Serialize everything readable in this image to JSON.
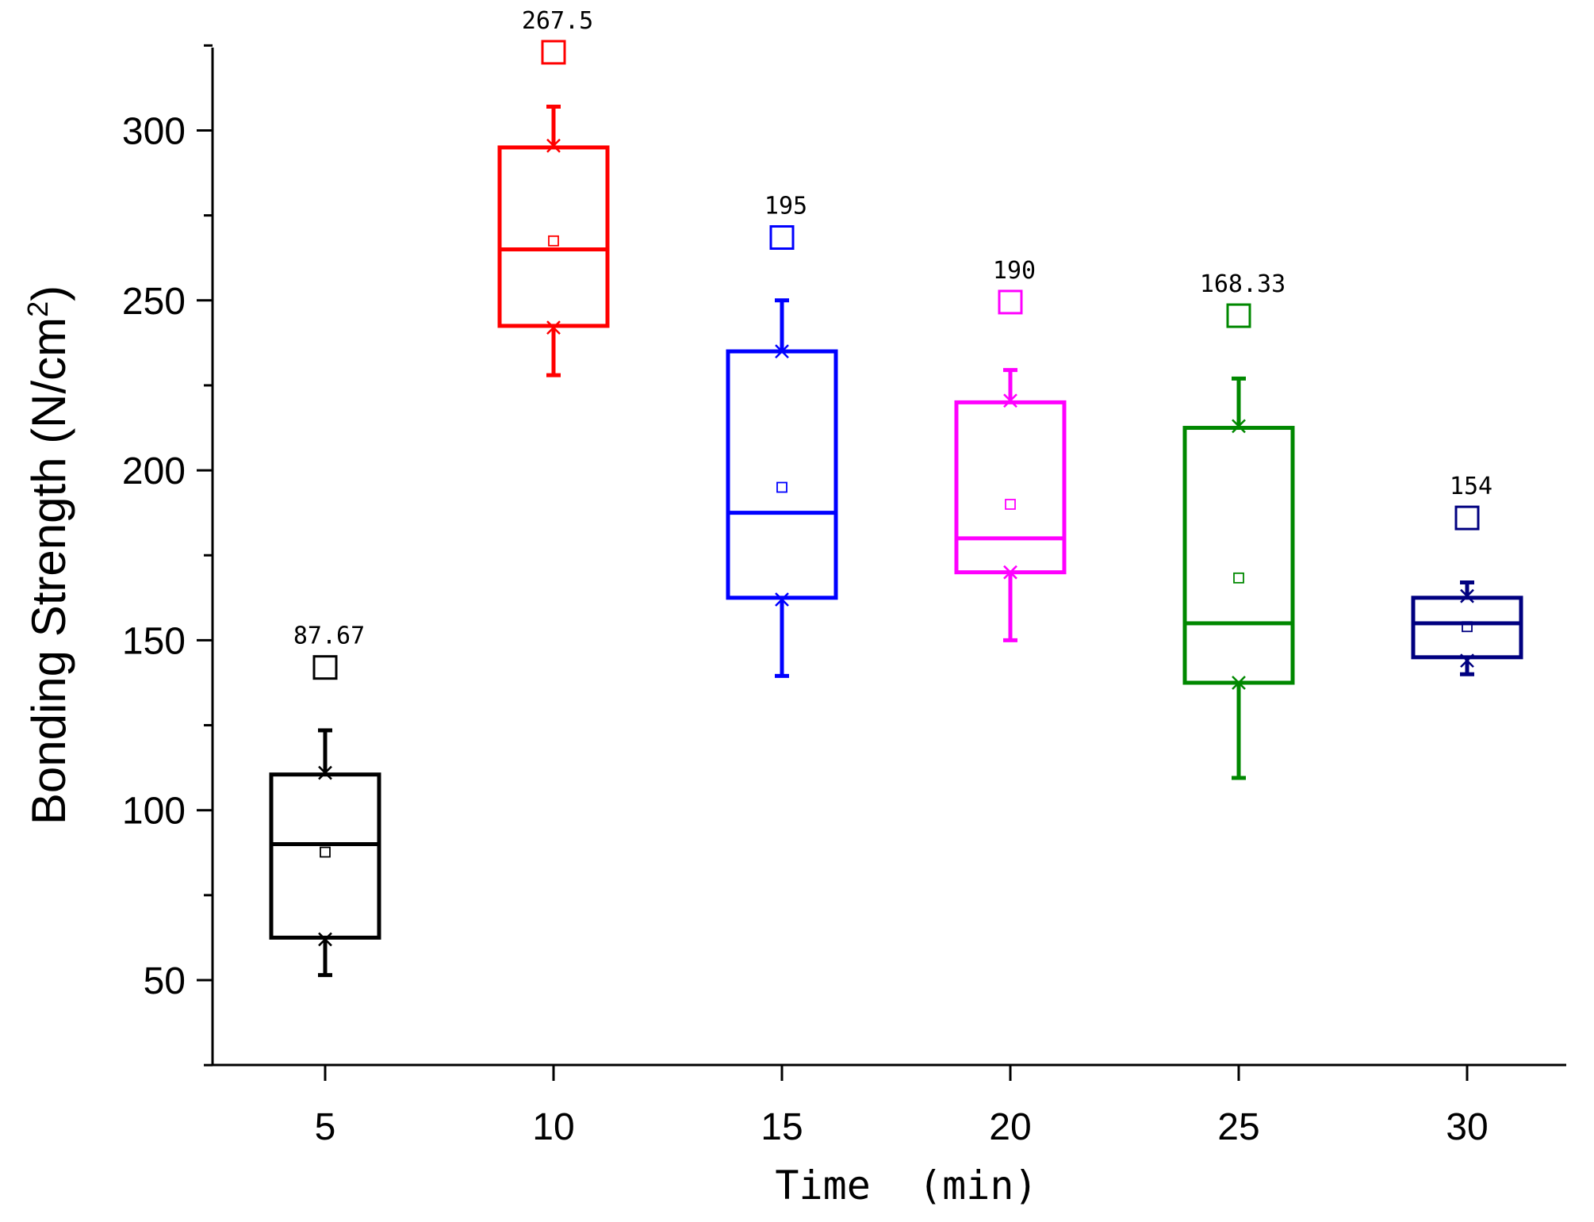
{
  "chart_data": {
    "type": "box",
    "xlabel": "Time  (min)",
    "ylabel": "Bonding Strength (N/cm",
    "ylabel_superscript": "2",
    "ylabel_suffix": ")",
    "ylim": [
      25,
      325
    ],
    "y_ticks": [
      50,
      100,
      150,
      200,
      250,
      300
    ],
    "y_minor_step": 25,
    "categories": [
      "5",
      "10",
      "15",
      "20",
      "25",
      "30"
    ],
    "boxes": [
      {
        "x": "5",
        "color": "#000000",
        "whisker_low": 51.5,
        "q1": 62.5,
        "median": 90,
        "q3": 110.5,
        "whisker_high": 123.5,
        "p1": 62,
        "p99": 111,
        "mean": 87.67,
        "mean_label": "87.67",
        "outlier": 142
      },
      {
        "x": "10",
        "color": "#ff0000",
        "whisker_low": 228,
        "q1": 242.5,
        "median": 265,
        "q3": 295,
        "whisker_high": 307,
        "p1": 242,
        "p99": 295.5,
        "mean": 267.5,
        "mean_label": "267.5",
        "outlier": 323
      },
      {
        "x": "15",
        "color": "#0000ff",
        "whisker_low": 139.5,
        "q1": 162.5,
        "median": 187.5,
        "q3": 235,
        "whisker_high": 250,
        "p1": 162,
        "p99": 235,
        "mean": 195,
        "mean_label": "195",
        "outlier": 268.5
      },
      {
        "x": "20",
        "color": "#ff00ff",
        "whisker_low": 150,
        "q1": 170,
        "median": 180,
        "q3": 220,
        "whisker_high": 229.5,
        "p1": 170,
        "p99": 220.5,
        "mean": 190,
        "mean_label": "190",
        "outlier": 249.5
      },
      {
        "x": "25",
        "color": "#008800",
        "whisker_low": 109.5,
        "q1": 137.5,
        "median": 155,
        "q3": 212.5,
        "whisker_high": 227,
        "p1": 137.5,
        "p99": 213,
        "mean": 168.33,
        "mean_label": "168.33",
        "outlier": 245.5
      },
      {
        "x": "30",
        "color": "#000080",
        "whisker_low": 140,
        "q1": 145,
        "median": 155,
        "q3": 162.5,
        "whisker_high": 167,
        "p1": 144,
        "p99": 163,
        "mean": 154,
        "mean_label": "154",
        "outlier": 186
      }
    ]
  }
}
